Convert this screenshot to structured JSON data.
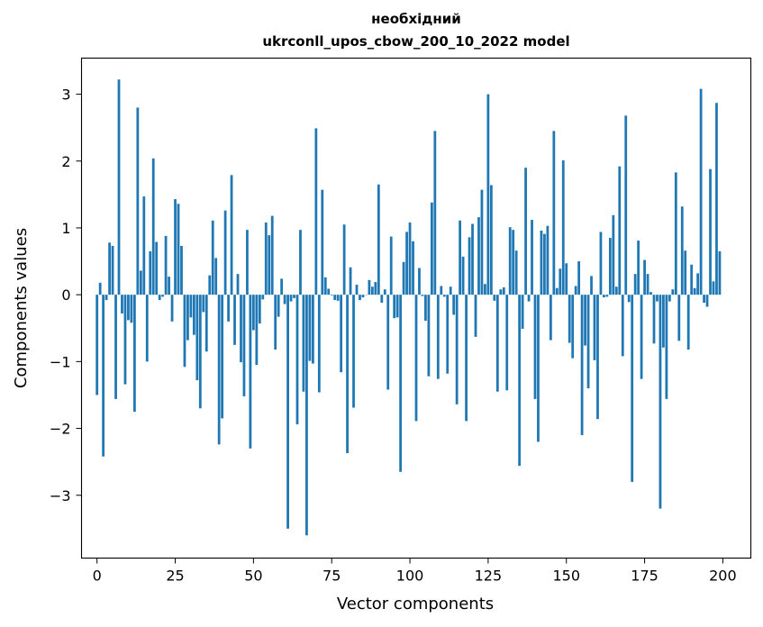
{
  "chart_data": {
    "type": "bar",
    "title_line1": "необхідний",
    "title_line2": "ukrconll_upos_cbow_200_10_2022 model",
    "xlabel": "Vector components",
    "ylabel": "Components values",
    "xlim": [
      -4.95,
      208.95
    ],
    "ylim": [
      -3.94,
      3.54
    ],
    "x_ticks": [
      0,
      25,
      50,
      75,
      100,
      125,
      150,
      175,
      200
    ],
    "x_tick_labels": [
      "0",
      "25",
      "50",
      "75",
      "100",
      "125",
      "150",
      "175",
      "200"
    ],
    "y_ticks": [
      -3,
      -2,
      -1,
      0,
      1,
      2,
      3
    ],
    "y_tick_labels": [
      "−3",
      "−2",
      "−1",
      "0",
      "1",
      "2",
      "3"
    ],
    "bar_color": "#1f77b4",
    "grid": false,
    "values": [
      -1.5,
      0.18,
      -2.42,
      -0.08,
      0.78,
      0.73,
      -1.56,
      3.22,
      -0.28,
      -1.34,
      -0.38,
      -0.42,
      -1.75,
      2.8,
      0.36,
      1.47,
      -1.0,
      0.65,
      2.04,
      0.79,
      -0.08,
      -0.03,
      0.88,
      0.27,
      -0.4,
      1.43,
      1.36,
      0.73,
      -1.08,
      -0.68,
      -0.34,
      -0.6,
      -1.28,
      -1.7,
      -0.26,
      -0.85,
      0.29,
      1.11,
      0.55,
      -2.24,
      -1.85,
      1.26,
      -0.4,
      1.79,
      -0.75,
      0.31,
      -1.01,
      -1.52,
      0.97,
      -2.3,
      -0.53,
      -1.05,
      -0.43,
      -0.07,
      1.08,
      0.89,
      1.18,
      -0.82,
      -0.33,
      0.24,
      -0.14,
      -3.5,
      -0.1,
      -0.05,
      -1.94,
      0.97,
      -1.45,
      -3.6,
      -0.99,
      -1.03,
      2.49,
      -1.46,
      1.57,
      0.26,
      0.09,
      -0.01,
      -0.08,
      -0.09,
      -1.16,
      1.05,
      -2.37,
      0.41,
      -1.69,
      0.15,
      -0.08,
      -0.04,
      0.0,
      0.22,
      0.12,
      0.19,
      1.65,
      -0.12,
      0.08,
      -1.42,
      0.87,
      -0.35,
      -0.34,
      -2.65,
      0.49,
      0.94,
      1.08,
      0.8,
      -1.89,
      0.4,
      -0.02,
      -0.39,
      -1.22,
      1.38,
      2.45,
      -1.26,
      0.13,
      -0.03,
      -1.18,
      0.12,
      -0.3,
      -1.64,
      1.11,
      0.57,
      -1.89,
      0.86,
      1.06,
      -0.63,
      1.16,
      1.57,
      0.16,
      3.0,
      1.64,
      -0.09,
      -1.45,
      0.08,
      0.11,
      -1.43,
      1.01,
      0.97,
      0.66,
      -2.56,
      -0.51,
      1.9,
      -0.1,
      1.12,
      -1.56,
      -2.2,
      0.96,
      0.91,
      1.03,
      -0.68,
      2.45,
      0.1,
      0.39,
      2.01,
      0.47,
      -0.72,
      -0.95,
      0.13,
      0.5,
      -2.1,
      -0.76,
      -1.4,
      0.28,
      -0.98,
      -1.86,
      0.94,
      -0.04,
      -0.03,
      0.85,
      1.19,
      0.12,
      1.92,
      -0.92,
      2.68,
      -0.11,
      -2.8,
      0.31,
      0.81,
      -1.26,
      0.52,
      0.31,
      0.04,
      -0.73,
      -0.1,
      -3.2,
      -0.79,
      -1.56,
      -0.1,
      0.08,
      1.83,
      -0.69,
      1.32,
      0.66,
      -0.82,
      0.45,
      0.1,
      0.32,
      3.08,
      -0.12,
      -0.18,
      1.88,
      0.2,
      2.87,
      0.65
    ]
  }
}
